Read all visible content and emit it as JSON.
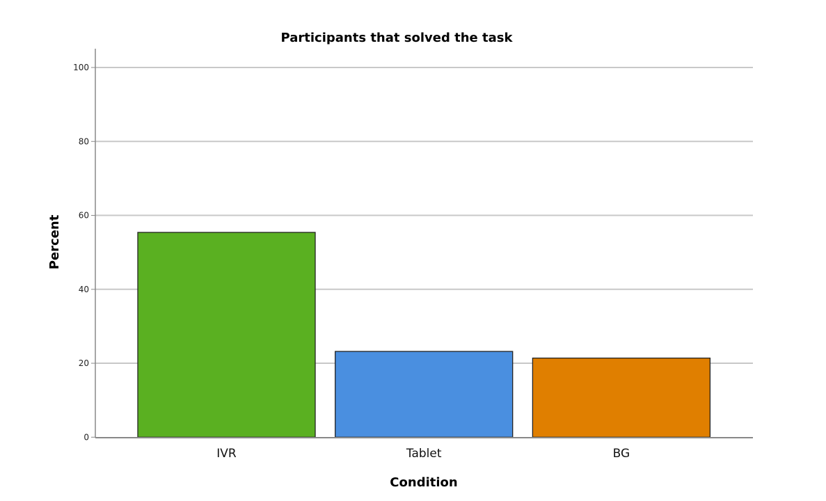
{
  "chart_data": {
    "type": "bar",
    "title": "Participants that solved the task",
    "xlabel": "Condition",
    "ylabel": "Percent",
    "categories": [
      "IVR",
      "Tablet",
      "BG"
    ],
    "values": [
      55.4,
      23.2,
      21.4
    ],
    "colors": [
      "#5ab021",
      "#4a8fe0",
      "#e07f00"
    ],
    "ylim": [
      0,
      100
    ],
    "yticks": [
      0,
      20,
      40,
      60,
      80,
      100
    ],
    "grid": true,
    "legend": "none"
  }
}
